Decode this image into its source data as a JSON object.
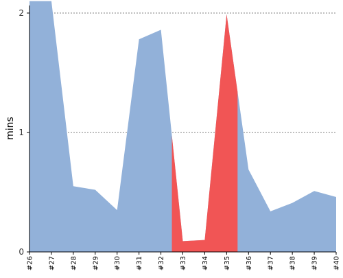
{
  "chart_data": {
    "type": "area",
    "xlabel": "",
    "ylabel": "mins",
    "ylim": [
      0,
      2
    ],
    "yticks": [
      0,
      1,
      2
    ],
    "grid": "horizontal dashed at 1 and 2",
    "colors": {
      "base": "#92b1d9",
      "failed": "#f15555"
    },
    "categories": [
      "#26",
      "#27",
      "#28",
      "#29",
      "#30",
      "#31",
      "#32",
      "#33",
      "#34",
      "#35",
      "#36",
      "#37",
      "#38",
      "#39",
      "#40"
    ],
    "values": [
      2.1,
      2.1,
      0.55,
      0.52,
      0.35,
      1.78,
      1.86,
      0.09,
      0.1,
      1.99,
      0.69,
      0.34,
      0.41,
      0.51,
      0.46
    ],
    "values_note_first": "left edge value",
    "failed_range": [
      "#32.5",
      "#35.5"
    ]
  }
}
